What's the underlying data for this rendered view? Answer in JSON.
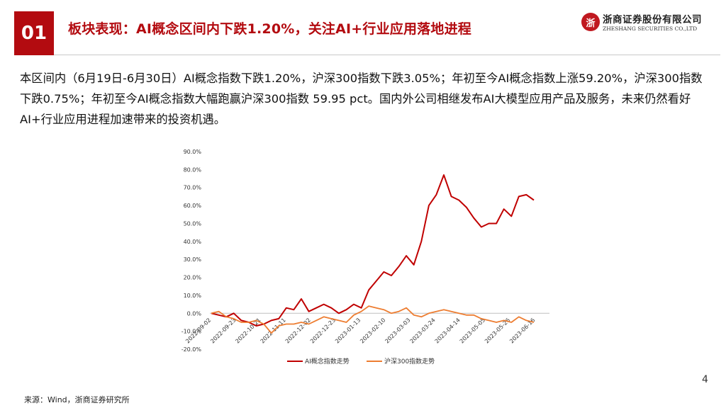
{
  "header": {
    "section_number": "01",
    "title": "板块表现：AI概念区间内下跌1.20%，关注AI+行业应用落地进程",
    "logo_cn": "浙商证券股份有限公司",
    "logo_en": "ZHESHANG SECURITIES CO.,LTD"
  },
  "summary": "本区间内（6月19日-6月30日）AI概念指数下跌1.20%，沪深300指数下跌3.05%；年初至今AI概念指数上涨59.20%，沪深300指数下跌0.75%；年初至今AI概念指数大幅跑赢沪深300指数 59.95 pct。国内外公司相继发布AI大模型应用产品及服务，未来仍然看好AI+行业应用进程加速带来的投资机遇。",
  "footer": {
    "source": "来源：Wind，浙商证券研究所",
    "page_number": "4"
  },
  "colors": {
    "brand_red": "#b30b10",
    "series_ai": "#c00000",
    "series_hs300": "#ed7d31"
  },
  "chart_data": {
    "type": "line",
    "x_tick_labels": [
      "2022-09-02",
      "2022-09-23",
      "2022-10-21",
      "2022-11-11",
      "2022-12-02",
      "2022-12-23",
      "2023-01-13",
      "2023-02-10",
      "2023-03-03",
      "2023-03-24",
      "2023-04-14",
      "2023-05-05",
      "2023-05-26",
      "2023-06-16"
    ],
    "y_tick_labels": [
      "90.0%",
      "80.0%",
      "70.0%",
      "60.0%",
      "50.0%",
      "40.0%",
      "30.0%",
      "20.0%",
      "10.0%",
      "0.0%",
      "-10.0%",
      "-20.0%"
    ],
    "ylim": [
      -20,
      90
    ],
    "grid": false,
    "legend_position": "bottom",
    "series": [
      {
        "name": "AI概念指数走势",
        "color": "#c00000",
        "values": [
          0,
          -1,
          -2,
          0,
          -4,
          -5,
          -7,
          -6,
          -4,
          -3,
          3,
          2,
          8,
          1,
          3,
          5,
          3,
          0,
          2,
          5,
          3,
          13,
          18,
          23,
          21,
          26,
          32,
          27,
          40,
          60,
          66,
          77,
          65,
          63,
          59,
          53,
          48,
          50,
          50,
          58,
          54,
          65,
          66,
          63
        ]
      },
      {
        "name": "沪深300指数走势",
        "color": "#ed7d31",
        "values": [
          0,
          1,
          -2,
          -3,
          -5,
          -5,
          -4,
          -6,
          -11,
          -7,
          -6,
          -6,
          -5,
          -6,
          -4,
          -2,
          -3,
          -4,
          -5,
          -1,
          1,
          4,
          3,
          2,
          0,
          1,
          3,
          -1,
          -2,
          0,
          1,
          2,
          1,
          0,
          -1,
          -1,
          -3,
          -4,
          -5,
          -4,
          -5,
          -2,
          -4,
          -5
        ]
      }
    ]
  }
}
